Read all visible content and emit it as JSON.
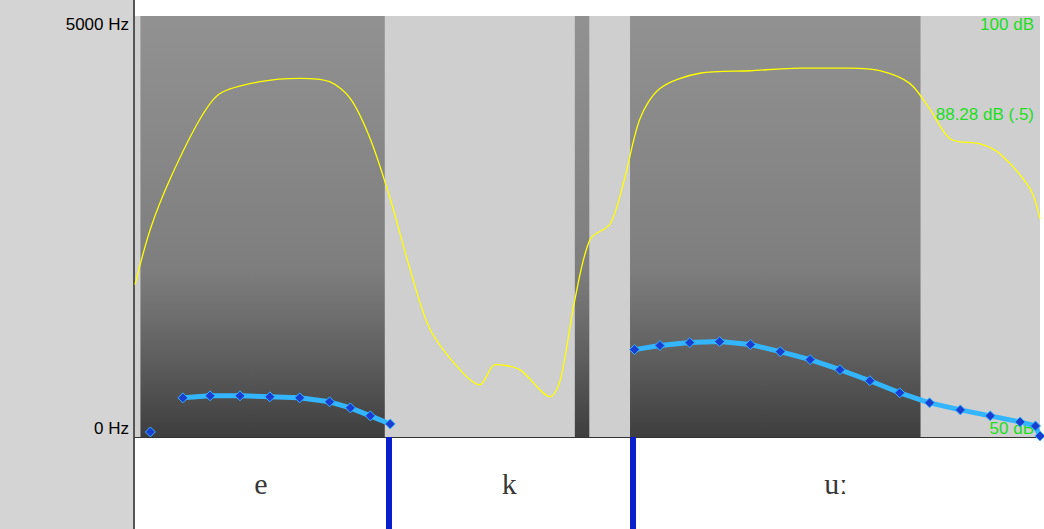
{
  "chart_data": {
    "type": "spectrogram",
    "xlim": [
      0,
      1
    ],
    "ylim": [
      0,
      5000
    ],
    "yticks": [
      {
        "value": 0,
        "label": "0 Hz"
      },
      {
        "value": 5000,
        "label": "5000 Hz"
      }
    ],
    "y2lim": [
      50,
      100
    ],
    "y2ticks": [
      {
        "value": 50,
        "label": "50 dB"
      },
      {
        "value": 88.28,
        "label": "88.28 dB (.5)"
      },
      {
        "value": 100,
        "label": "100 dB"
      }
    ],
    "grid": false,
    "tick_labels": "y",
    "energy_regions": [
      [
        0.006,
        0.276
      ],
      [
        0.486,
        0.502
      ],
      [
        0.547,
        0.868
      ]
    ],
    "segments": [
      {
        "label": "e",
        "start": 0,
        "end": 0.278
      },
      {
        "label": "k",
        "start": 0.278,
        "end": 0.549
      },
      {
        "label": "uː",
        "start": 0.549,
        "end": 1
      }
    ],
    "series": [
      {
        "type": "line",
        "marker": "diamond",
        "color": "#1a3fd0",
        "x": [
          0.017,
          0.035,
          0.053,
          0.083,
          0.116,
          0.149,
          0.182,
          0.215,
          0.238,
          0.26,
          0.282,
          0.4,
          0.552,
          0.58,
          0.613,
          0.646,
          0.68,
          0.713,
          0.746,
          0.779,
          0.812,
          0.845,
          0.878,
          0.912,
          0.945,
          0.978,
          0.995,
          1.0
        ],
        "values": [
          60,
          null,
          465,
          489,
          489,
          477,
          465,
          418,
          346,
          251,
          155,
          null,
          1038,
          1086,
          1121,
          1133,
          1098,
          1014,
          919,
          799,
          668,
          525,
          406,
          322,
          251,
          179,
          131,
          12
        ]
      },
      {
        "type": "line",
        "axis": "y2",
        "color": "#ffff00",
        "x": [
          0,
          0.017,
          0.039,
          0.072,
          0.094,
          0.138,
          0.182,
          0.215,
          0.238,
          0.26,
          0.282,
          0.304,
          0.326,
          0.359,
          0.381,
          0.398,
          0.425,
          0.459,
          0.47,
          0.486,
          0.503,
          0.525,
          0.541,
          0.558,
          0.58,
          0.624,
          0.68,
          0.735,
          0.79,
          0.823,
          0.856,
          0.878,
          0.901,
          0.934,
          0.956,
          0.989,
          1.0
        ],
        "values": [
          68.1,
          74.7,
          80.7,
          87.8,
          90.8,
          92.2,
          92.6,
          92.2,
          90.2,
          85.4,
          78.3,
          69.9,
          62.8,
          58.0,
          56.2,
          58.6,
          58.0,
          54.8,
          56.8,
          66.3,
          73.5,
          75.3,
          80.7,
          87.8,
          91.4,
          93.2,
          93.5,
          93.8,
          93.8,
          93.5,
          92.0,
          89.0,
          85.4,
          84.8,
          83.6,
          79.5,
          75.9
        ]
      }
    ]
  }
}
